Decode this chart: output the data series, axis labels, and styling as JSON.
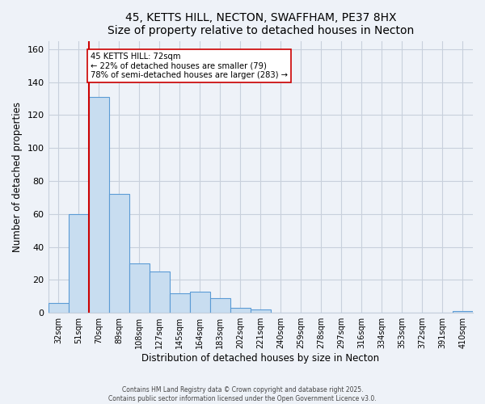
{
  "title": "45, KETTS HILL, NECTON, SWAFFHAM, PE37 8HX",
  "subtitle": "Size of property relative to detached houses in Necton",
  "xlabel": "Distribution of detached houses by size in Necton",
  "ylabel": "Number of detached properties",
  "categories": [
    "32sqm",
    "51sqm",
    "70sqm",
    "89sqm",
    "108sqm",
    "127sqm",
    "145sqm",
    "164sqm",
    "183sqm",
    "202sqm",
    "221sqm",
    "240sqm",
    "259sqm",
    "278sqm",
    "297sqm",
    "316sqm",
    "334sqm",
    "353sqm",
    "372sqm",
    "391sqm",
    "410sqm"
  ],
  "values": [
    6,
    60,
    131,
    72,
    30,
    25,
    12,
    13,
    9,
    3,
    2,
    0,
    0,
    0,
    0,
    0,
    0,
    0,
    0,
    0,
    1
  ],
  "bar_color": "#c8ddf0",
  "bar_edge_color": "#5b9bd5",
  "bar_width": 1.0,
  "vline_x": 1.5,
  "vline_color": "#cc0000",
  "annotation_title": "45 KETTS HILL: 72sqm",
  "annotation_line1": "← 22% of detached houses are smaller (79)",
  "annotation_line2": "78% of semi-detached houses are larger (283) →",
  "ylim": [
    0,
    165
  ],
  "yticks": [
    0,
    20,
    40,
    60,
    80,
    100,
    120,
    140,
    160
  ],
  "footer1": "Contains HM Land Registry data © Crown copyright and database right 2025.",
  "footer2": "Contains public sector information licensed under the Open Government Licence v3.0.",
  "background_color": "#eef2f8",
  "plot_background": "#eef2f8",
  "grid_color": "#c8d0dc"
}
